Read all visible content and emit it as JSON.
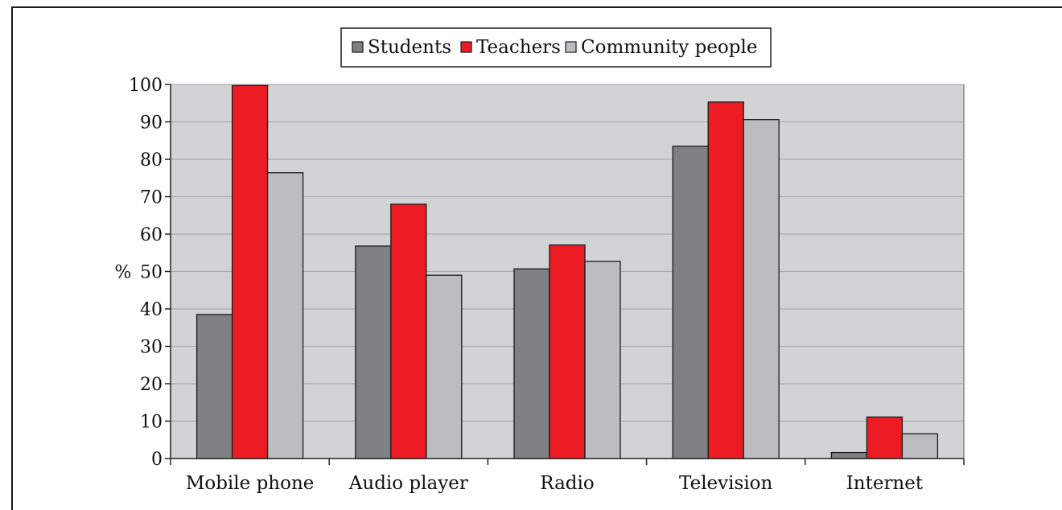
{
  "chart_data": {
    "type": "bar",
    "categories": [
      "Mobile phone",
      "Audio player",
      "Radio",
      "Television",
      "Internet"
    ],
    "series": [
      {
        "name": "Students",
        "values": [
          38.5,
          56.8,
          50.7,
          83.5,
          1.6
        ],
        "color": "#7f8084"
      },
      {
        "name": "Teachers",
        "values": [
          99.7,
          68.0,
          57.1,
          95.3,
          11.1
        ],
        "color": "#ed1c24"
      },
      {
        "name": "Community people",
        "values": [
          76.4,
          49.0,
          52.7,
          90.6,
          6.6
        ],
        "color": "#bcbdc1"
      }
    ],
    "ylabel": "%",
    "xlabel": "",
    "ylim": [
      0,
      100
    ],
    "yticks": [
      0,
      10,
      20,
      30,
      40,
      50,
      60,
      70,
      80,
      90,
      100
    ],
    "grid": true,
    "legend_position": "top-center",
    "plot_background": "#d2d3d5",
    "gridline_color": "#a9aaad"
  }
}
